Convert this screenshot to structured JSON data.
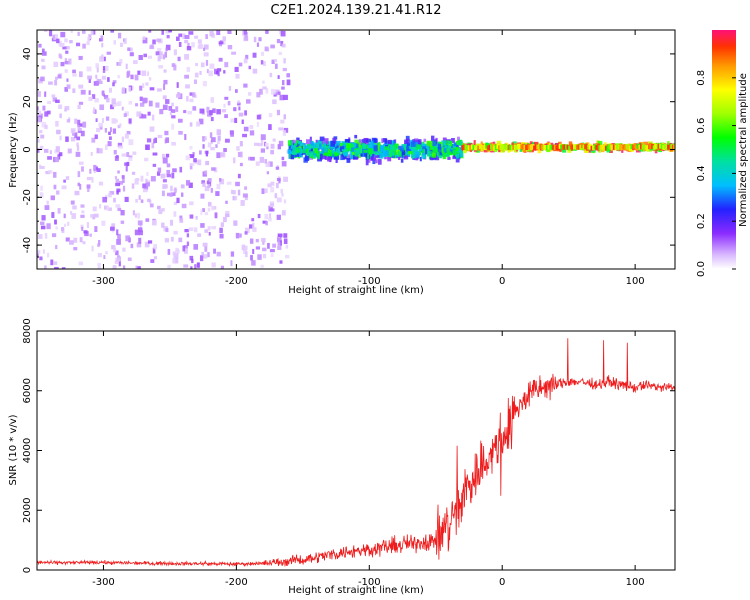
{
  "title": "C2E1.2024.139.21.41.R12",
  "colors": {
    "snr_line": "#ee1c1c",
    "spec_low": "#7a1cf0",
    "spec_mid": "#19d2e6",
    "spec_high": "#e0246a",
    "colorbar": [
      "#ffffff",
      "#d9b8ff",
      "#8a2bff",
      "#2222ff",
      "#00bfff",
      "#00e0a0",
      "#00ff00",
      "#a0ff00",
      "#ffff00",
      "#ff9900",
      "#ff3300",
      "#ff1177"
    ]
  },
  "chart_data": [
    {
      "type": "heatmap",
      "title": "C2E1.2024.139.21.41.R12",
      "xlabel": "Height of straight line (km)",
      "ylabel": "Frequency (Hz)",
      "xlim": [
        -350,
        130
      ],
      "ylim": [
        -50,
        50
      ],
      "x_ticks": [
        -300,
        -200,
        -100,
        0,
        100
      ],
      "y_ticks": [
        -40,
        -20,
        0,
        20,
        40
      ],
      "grid": false,
      "colorbar": {
        "label": "Normalized spectral amplitude",
        "range": [
          0.0,
          1.0
        ],
        "ticks": [
          0.0,
          0.2,
          0.4,
          0.6,
          0.8
        ]
      },
      "regions": [
        {
          "x_range": [
            -350,
            -160
          ],
          "freq_spread": 50,
          "amplitude": 0.15,
          "description": "diffuse"
        },
        {
          "x_range": [
            -160,
            -30
          ],
          "freq_center": 0,
          "freq_spread": 6,
          "amplitude": 0.45
        },
        {
          "x_range": [
            -30,
            130
          ],
          "freq_center": 1,
          "freq_spread": 2,
          "amplitude": 0.8
        }
      ]
    },
    {
      "type": "line",
      "xlabel": "Height of straight line (km)",
      "ylabel": "SNR (10 * v/v)",
      "xlim": [
        -350,
        130
      ],
      "ylim": [
        0,
        8000
      ],
      "x_ticks": [
        -300,
        -200,
        -100,
        0,
        100
      ],
      "y_ticks": [
        0,
        2000,
        4000,
        6000,
        8000
      ],
      "grid": false,
      "series": [
        {
          "x": [
            -350,
            -300,
            -250,
            -200,
            -175,
            -150,
            -125,
            -100,
            -75,
            -50,
            -40,
            -30,
            -20,
            -10,
            0,
            10,
            20,
            30,
            40,
            50,
            60,
            70,
            80,
            90,
            100,
            110,
            120,
            130
          ],
          "values": [
            250,
            250,
            220,
            200,
            230,
            350,
            550,
            700,
            850,
            1000,
            1500,
            2500,
            3200,
            3800,
            4300,
            5300,
            5900,
            6100,
            6200,
            6300,
            6300,
            6200,
            6300,
            6200,
            6100,
            6200,
            6100,
            6100
          ]
        }
      ]
    }
  ]
}
